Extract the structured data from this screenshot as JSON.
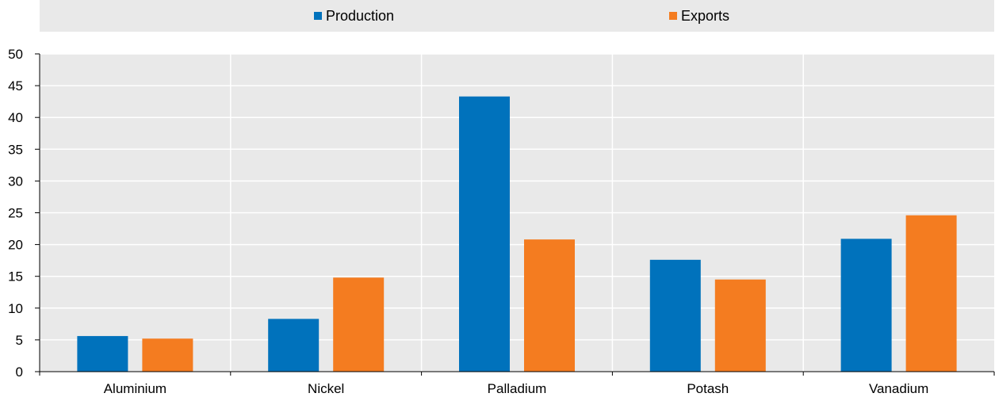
{
  "colors": {
    "production": "#0072bc",
    "exports": "#f47c20",
    "plot_bg": "#e9e9e9",
    "grid": "#ffffff",
    "axis": "#000000"
  },
  "legend": {
    "production_label": "Production",
    "exports_label": "Exports"
  },
  "chart_data": {
    "type": "bar",
    "categories": [
      "Aluminium",
      "Nickel",
      "Palladium",
      "Potash",
      "Vanadium"
    ],
    "series": [
      {
        "name": "Production",
        "values": [
          5.6,
          8.3,
          43.3,
          17.6,
          20.9
        ]
      },
      {
        "name": "Exports",
        "values": [
          5.2,
          14.8,
          20.8,
          14.5,
          24.6
        ]
      }
    ],
    "title": "",
    "xlabel": "",
    "ylabel": "",
    "ylim": [
      0,
      50
    ],
    "yticks": [
      0,
      5,
      10,
      15,
      20,
      25,
      30,
      35,
      40,
      45,
      50
    ],
    "grid": true,
    "legend_position": "top"
  }
}
